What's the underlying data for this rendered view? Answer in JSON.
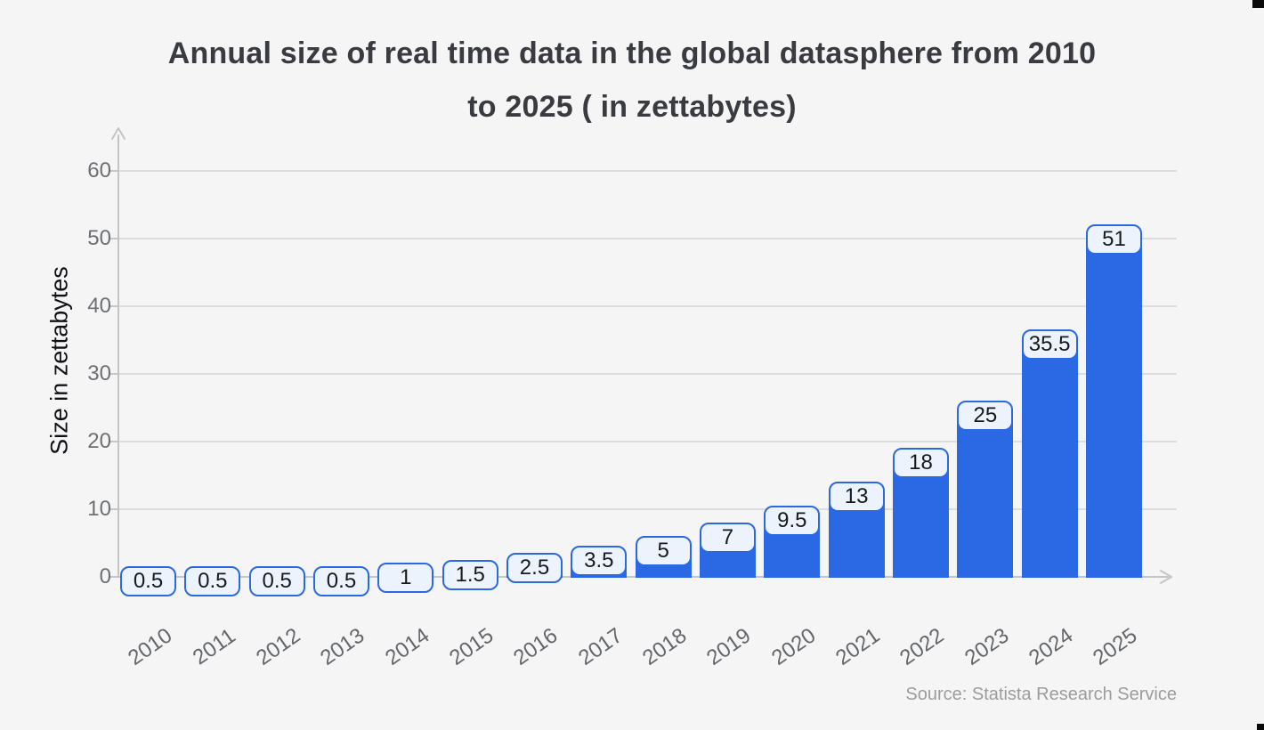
{
  "chart_data": {
    "type": "bar",
    "title": "Annual size of real time data in the global datasphere from 2010 to 2025 ( in zettabytes)",
    "categories": [
      "2010",
      "2011",
      "2012",
      "2013",
      "2014",
      "2015",
      "2016",
      "2017",
      "2018",
      "2019",
      "2020",
      "2021",
      "2022",
      "2023",
      "2024",
      "2025"
    ],
    "values": [
      0.5,
      0.5,
      0.5,
      0.5,
      1,
      1.5,
      2.5,
      3.5,
      5,
      7,
      9.5,
      13,
      18,
      25,
      35.5,
      51
    ],
    "xlabel": "",
    "ylabel": "Size in zettabytes",
    "ylim": [
      0,
      64
    ],
    "yticks": [
      0,
      10,
      20,
      30,
      40,
      50,
      60
    ],
    "grid": true,
    "legend": false,
    "bar_color": "#2b69e4",
    "value_label_bg": "#edf3fd",
    "value_label_border": "#2b69e4",
    "background": "#f5f5f6"
  },
  "source": "Source: Statista Research Service"
}
